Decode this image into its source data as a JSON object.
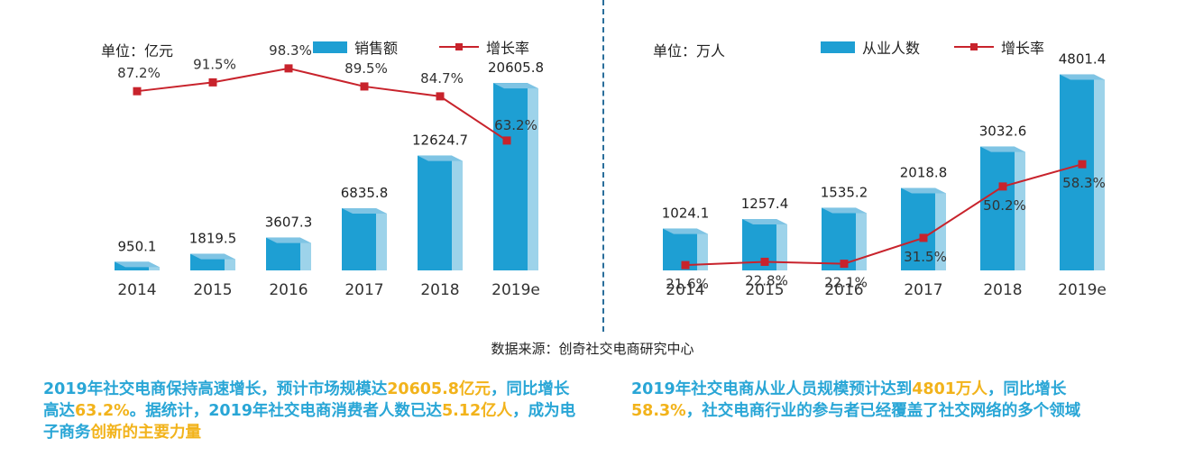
{
  "chart_data": [
    {
      "type": "bar",
      "unit_label": "单位：亿元",
      "categories": [
        "2014",
        "2015",
        "2016",
        "2017",
        "2018",
        "2019e"
      ],
      "series": [
        {
          "name": "销售额",
          "kind": "bar",
          "values": [
            950.1,
            1819.5,
            3607.3,
            6835.8,
            12624.7,
            20605.8
          ],
          "labels": [
            "950.1",
            "1819.5",
            "3607.3",
            "6835.8",
            "12624.7",
            "20605.8"
          ]
        },
        {
          "name": "增长率",
          "kind": "line",
          "values": [
            87.2,
            91.5,
            98.3,
            89.5,
            84.7,
            63.2
          ],
          "labels": [
            "87.2%",
            "91.5%",
            "98.3%",
            "89.5%",
            "84.7%",
            "63.2%"
          ]
        }
      ],
      "ylim": [
        0,
        22000
      ],
      "ylim_rate": [
        0,
        100
      ],
      "legend": "top-right",
      "grid": false
    },
    {
      "type": "bar",
      "unit_label": "单位：万人",
      "categories": [
        "2014",
        "2015",
        "2016",
        "2017",
        "2018",
        "2019e"
      ],
      "series": [
        {
          "name": "从业人数",
          "kind": "bar",
          "values": [
            1024.1,
            1257.4,
            1535.2,
            2018.8,
            3032.6,
            4801.4
          ],
          "labels": [
            "1024.1",
            "1257.4",
            "1535.2",
            "2018.8",
            "3032.6",
            "4801.4"
          ]
        },
        {
          "name": "增长率",
          "kind": "line",
          "values": [
            21.6,
            22.8,
            22.1,
            31.5,
            50.2,
            58.3
          ],
          "labels": [
            "21.6%",
            "22.8%",
            "22.1%",
            "31.5%",
            "50.2%",
            "58.3%"
          ]
        }
      ],
      "ylim": [
        0,
        4900
      ],
      "ylim_rate": [
        0,
        100
      ],
      "legend": "top-right",
      "grid": false
    }
  ],
  "source": "数据来源：创奇社交电商研究中心",
  "captions": {
    "left": [
      {
        "text": "2019年社交电商保持高速增长，预计市场规模达",
        "hl": false
      },
      {
        "text": "20605.8亿元",
        "hl": true
      },
      {
        "text": "，同比增长高达",
        "hl": false
      },
      {
        "text": "63.2%",
        "hl": true
      },
      {
        "text": "。据统计，2019年社交电商消费者人数已达",
        "hl": false
      },
      {
        "text": "5.12亿人",
        "hl": true
      },
      {
        "text": "，成为电子商务",
        "hl": false
      },
      {
        "text": "创新的主要力量",
        "hl": true
      }
    ],
    "right": [
      {
        "text": "2019年社交电商从业人员规模预计达到",
        "hl": false
      },
      {
        "text": "4801万人",
        "hl": true
      },
      {
        "text": "，同比增长",
        "hl": false
      },
      {
        "text": "58.3%",
        "hl": true
      },
      {
        "text": "，社交电商行业的参与者已经覆盖了社交网络的多个领域",
        "hl": false
      }
    ]
  },
  "colors": {
    "bar_front": "#1e9fd3",
    "bar_side": "#9dd3ea",
    "bar_top": "#7fc4e4",
    "line": "#c8232c",
    "caption": "#29a6d6",
    "highlight": "#f2b31b"
  }
}
